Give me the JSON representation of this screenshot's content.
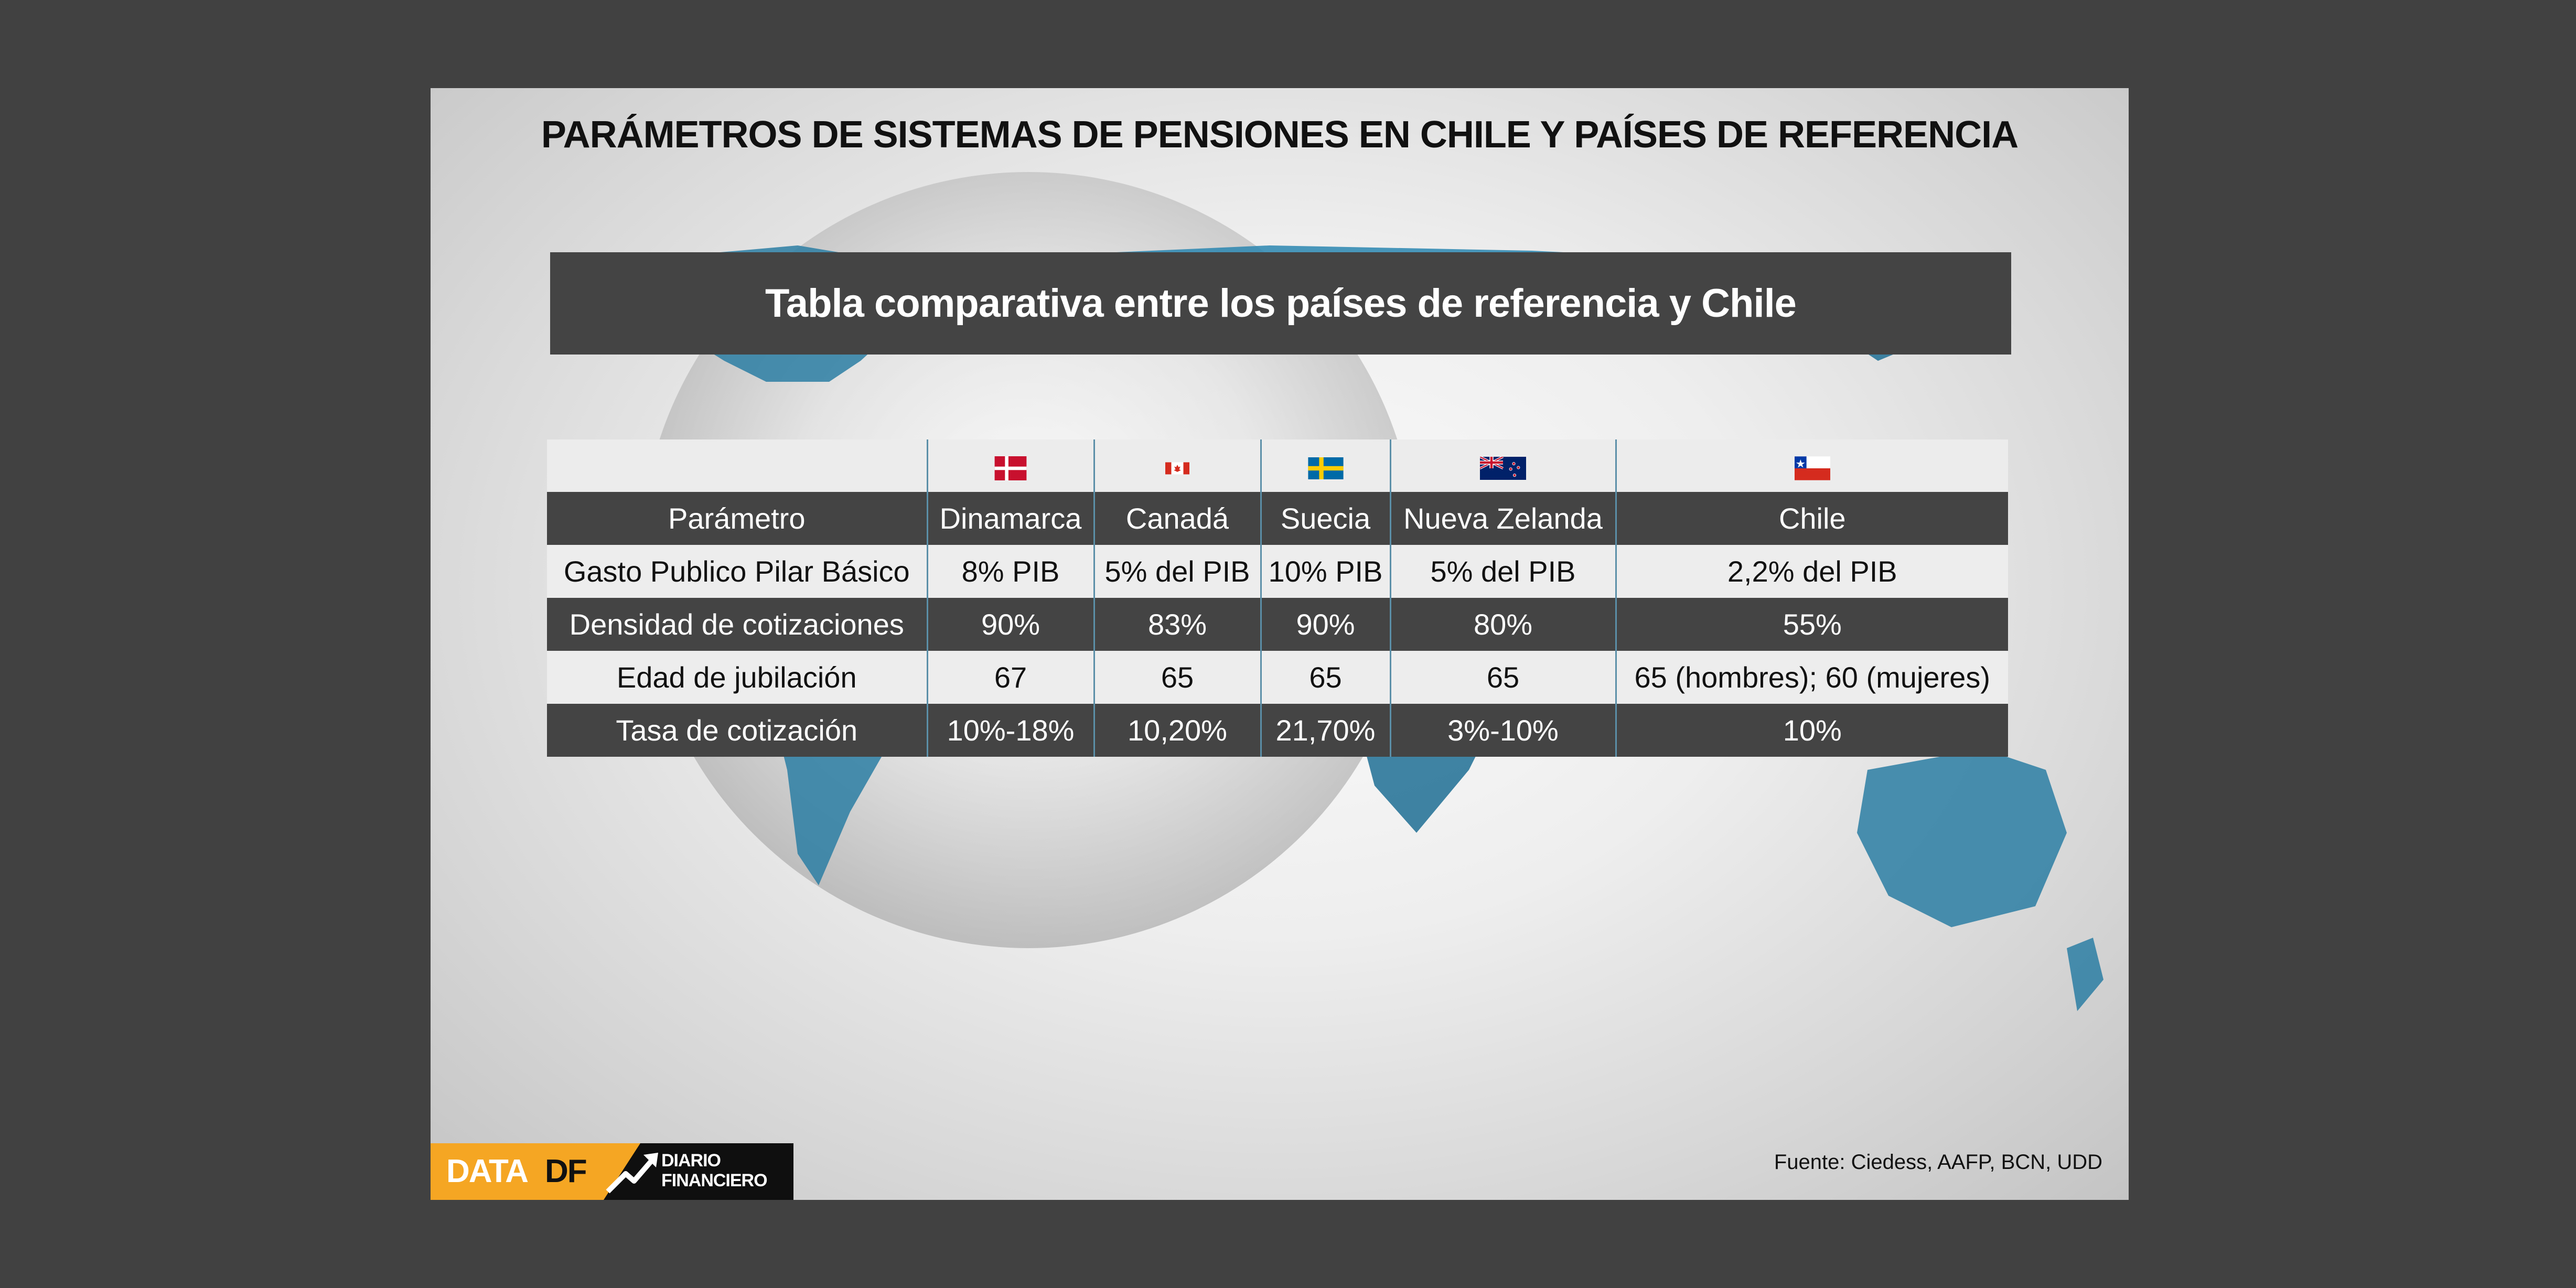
{
  "title": "PARÁMETROS DE SISTEMAS DE PENSIONES EN CHILE Y PAÍSES DE REFERENCIA",
  "subtitle": "Tabla comparativa entre los países de referencia y Chile",
  "table": {
    "header": [
      "Parámetro",
      "Dinamarca",
      "Canadá",
      "Suecia",
      "Nueva Zelanda",
      "Chile"
    ],
    "flags": [
      "denmark-flag-icon",
      "canada-flag-icon",
      "sweden-flag-icon",
      "new-zealand-flag-icon",
      "chile-flag-icon"
    ],
    "rows": [
      [
        "Gasto Publico Pilar Básico",
        "8% PIB",
        "5% del PIB",
        "10% PIB",
        "5% del PIB",
        "2,2% del PIB"
      ],
      [
        "Densidad de cotizaciones",
        "90%",
        "83%",
        "90%",
        "80%",
        "55%"
      ],
      [
        "Edad de jubilación",
        "67",
        "65",
        "65",
        "65",
        "65 (hombres); 60 (mujeres)"
      ],
      [
        "Tasa de cotización",
        "10%-18%",
        "10,20%",
        "21,70%",
        "3%-10%",
        "10%"
      ]
    ]
  },
  "footer": {
    "logo_data": "DATA",
    "logo_df": "DF",
    "logo_diario": "DIARIO",
    "logo_financiero": "FINANCIERO",
    "source": "Fuente: Ciedess, AAFP, BCN, UDD"
  },
  "colors": {
    "page_bg": "#414141",
    "dark_row": "#444444",
    "light_row": "#ededed",
    "divider": "#5b8fa8",
    "brand_orange": "#f5a623"
  }
}
